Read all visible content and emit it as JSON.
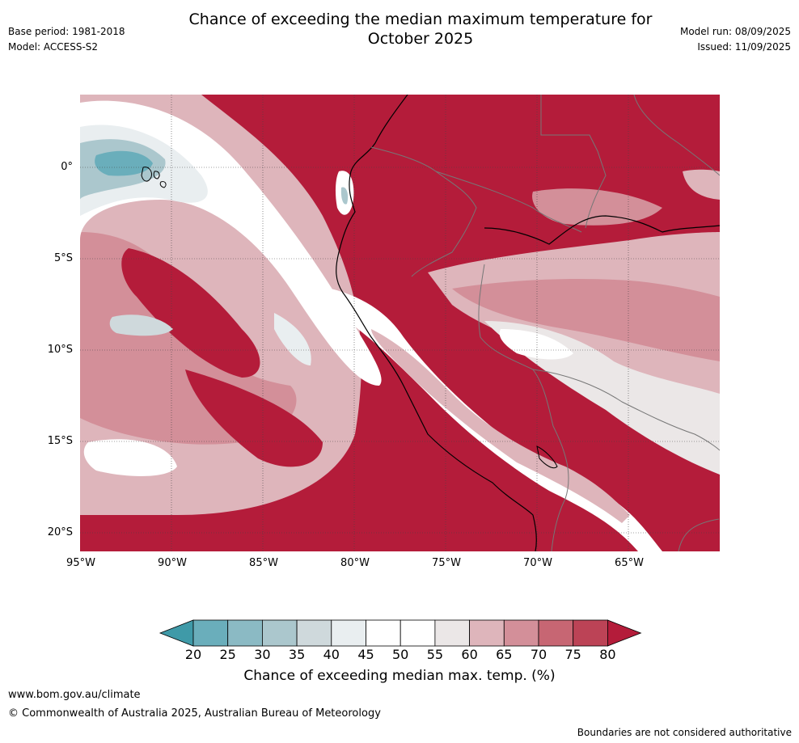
{
  "header": {
    "title_line1": "Chance of exceeding the median maximum temperature for",
    "title_line2": "October 2025",
    "base_period": "Base period: 1981-2018",
    "model": "Model: ACCESS-S2",
    "model_run": "Model run: 08/09/2025",
    "issued": "Issued: 11/09/2025"
  },
  "map": {
    "lat_labels": [
      "0°",
      "5°S",
      "10°S",
      "15°S",
      "20°S"
    ],
    "lon_labels": [
      "95°W",
      "90°W",
      "85°W",
      "80°W",
      "75°W",
      "70°W",
      "65°W"
    ]
  },
  "colorbar": {
    "ticks": [
      "20",
      "25",
      "30",
      "35",
      "40",
      "45",
      "50",
      "55",
      "60",
      "65",
      "70",
      "75",
      "80"
    ],
    "label": "Chance of exceeding median max. temp. (%)",
    "colors": [
      "#3f9aa8",
      "#6aaebb",
      "#8bbac4",
      "#abc7cd",
      "#cfd9dc",
      "#e9eef0",
      "#ffffff",
      "#ffffff",
      "#ebe7e7",
      "#deb5bb",
      "#d38f99",
      "#c76673",
      "#bc4356",
      "#b41c3a"
    ]
  },
  "footer": {
    "url": "www.bom.gov.au/climate",
    "copyright": "© Commonwealth of Australia 2025, Australian Bureau of Meteorology",
    "disclaimer": "Boundaries are not considered authoritative"
  }
}
